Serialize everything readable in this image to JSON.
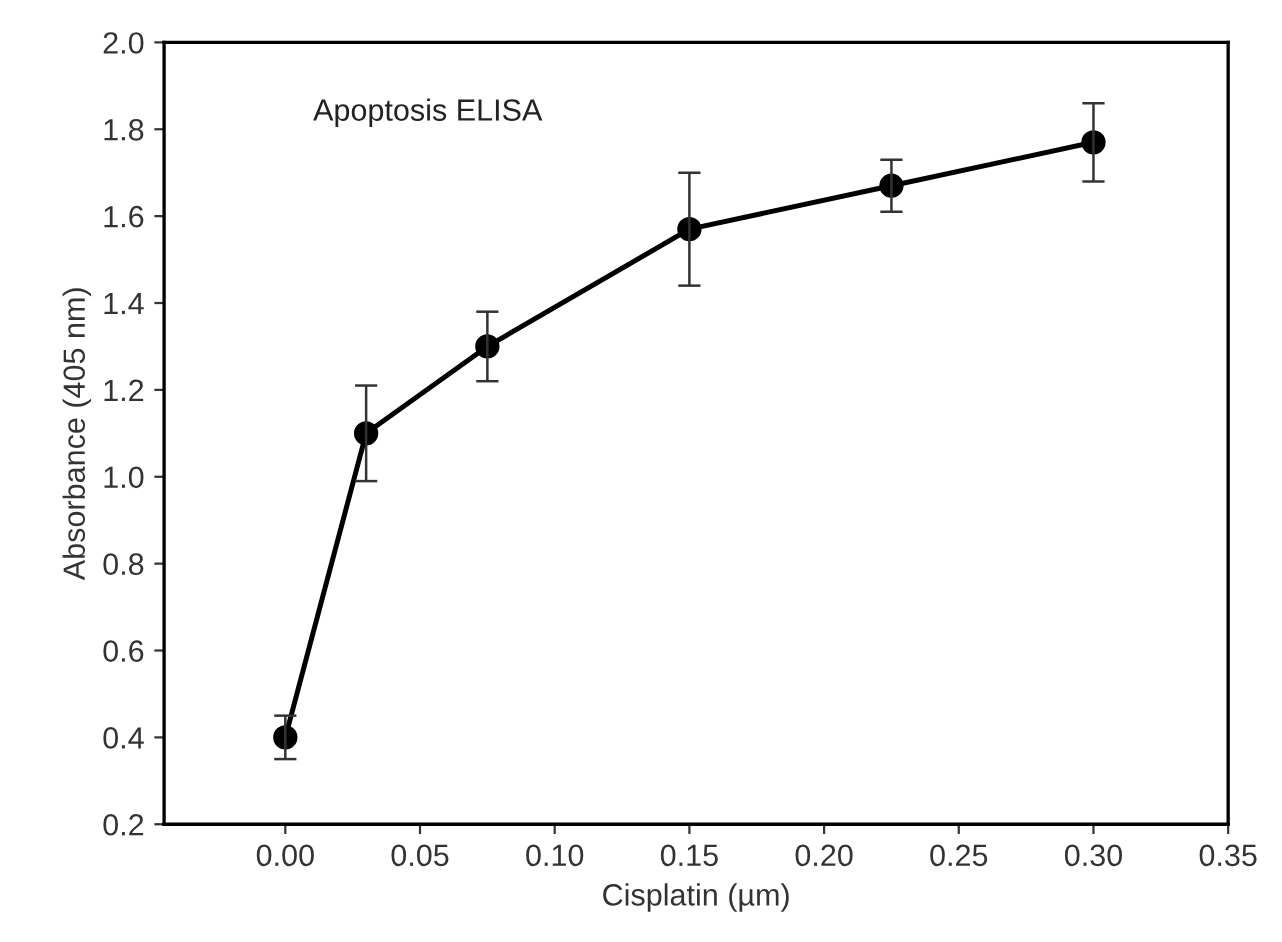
{
  "chart_data": {
    "type": "line",
    "xlabel": "Cisplatin (µm)",
    "ylabel": "Absorbance (405 nm)",
    "annotations": [
      "Apoptosis ELISA"
    ],
    "x": [
      0,
      0.03,
      0.075,
      0.15,
      0.225,
      0.3
    ],
    "series": [
      {
        "color": "#000000",
        "values": [
          0.4,
          1.1,
          1.3,
          1.57,
          1.67,
          1.77
        ],
        "errors": [
          [
            0.35,
            0.45
          ],
          [
            0.99,
            1.21
          ],
          [
            1.22,
            1.38
          ],
          [
            1.44,
            1.7
          ],
          [
            1.61,
            1.73
          ],
          [
            1.68,
            1.86
          ]
        ]
      }
    ],
    "xlim": [
      -0.045,
      0.35
    ],
    "xticks": [
      {
        "value": 0,
        "label": "0.00"
      },
      {
        "value": 0.05,
        "label": "0.05"
      },
      {
        "value": 0.1,
        "label": "0.10"
      },
      {
        "value": 0.15,
        "label": "0.15"
      },
      {
        "value": 0.2,
        "label": "0.20"
      },
      {
        "value": 0.25,
        "label": "0.25"
      },
      {
        "value": 0.3,
        "label": "0.30"
      },
      {
        "value": 0.35,
        "label": "0.35"
      }
    ],
    "ylim": [
      0.2,
      2.0
    ],
    "yticks": [
      {
        "value": 0.2,
        "label": "0.2"
      },
      {
        "value": 0.4,
        "label": "0.4"
      },
      {
        "value": 0.6,
        "label": "0.6"
      },
      {
        "value": 0.8,
        "label": "0.8"
      },
      {
        "value": 1.0,
        "label": "1.0"
      },
      {
        "value": 1.2,
        "label": "1.2"
      },
      {
        "value": 1.4,
        "label": "1.4"
      },
      {
        "value": 1.6,
        "label": "1.6"
      },
      {
        "value": 1.8,
        "label": "1.8"
      },
      {
        "value": 2.0,
        "label": "2.0"
      }
    ],
    "grid": false,
    "marker": "circle",
    "line_style": "solid"
  }
}
